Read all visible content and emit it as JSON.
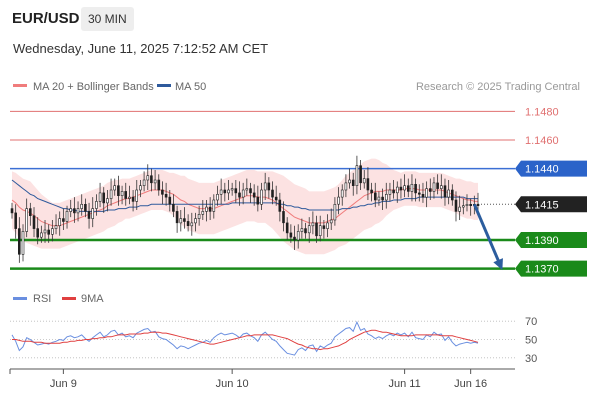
{
  "header": {
    "symbol": "EUR/USD",
    "timeframe": "30 MIN",
    "datetime": "Wednesday, June 11, 2025 7:12:52 AM CET"
  },
  "legend": {
    "bollinger_label": "MA 20 + Bollinger Bands",
    "ma50_label": "MA 50",
    "credit": "Research © 2025 Trading Central",
    "rsi_label": "RSI",
    "rsi_ma_label": "9MA"
  },
  "colors": {
    "bollinger": "#f07c7c",
    "ma50": "#2e5a9c",
    "bull_candle": "#1f1f1f",
    "bear_candle": "#1f1f1f",
    "resistance_line": "#e07070",
    "pivot_line": "#3b6fd4",
    "support_line": "#1a8a1a",
    "support_label_bg": "#1a8a1a",
    "pivot_label_bg": "#2b63c9",
    "last_price_bg": "#222222",
    "arrow": "#2c5d9e",
    "rsi": "#6a8fe0",
    "rsi_ma": "#e04040"
  },
  "chart_data": [
    {
      "type": "candlestick",
      "price_axis": {
        "min": 1.1362,
        "max": 1.1488
      },
      "levels": [
        {
          "price": 1.148,
          "label": "1.1480",
          "kind": "resistance"
        },
        {
          "price": 1.146,
          "label": "1.1460",
          "kind": "resistance"
        },
        {
          "price": 1.144,
          "label": "1.1440",
          "kind": "pivot"
        },
        {
          "price": 1.1415,
          "label": "1.1415",
          "kind": "last"
        },
        {
          "price": 1.139,
          "label": "1.1390",
          "kind": "support"
        },
        {
          "price": 1.137,
          "label": "1.1370",
          "kind": "support"
        }
      ],
      "x_ticks": [
        {
          "label": "Jun 9",
          "bar": 14
        },
        {
          "label": "Jun 10",
          "bar": 60
        },
        {
          "label": "Jun 11",
          "bar": 107
        },
        {
          "label": "Jun 16",
          "bar": 125
        }
      ],
      "x_range_bars": [
        0,
        132
      ],
      "close": [
        1.1409,
        1.1398,
        1.138,
        1.1396,
        1.1412,
        1.1407,
        1.1398,
        1.1392,
        1.1395,
        1.1397,
        1.1394,
        1.1398,
        1.14,
        1.1405,
        1.1403,
        1.141,
        1.1412,
        1.1409,
        1.1412,
        1.1415,
        1.141,
        1.1405,
        1.1412,
        1.1417,
        1.1423,
        1.1416,
        1.1419,
        1.1425,
        1.1428,
        1.1421,
        1.1424,
        1.1419,
        1.142,
        1.1417,
        1.1425,
        1.1428,
        1.1432,
        1.1435,
        1.143,
        1.1432,
        1.1425,
        1.1422,
        1.142,
        1.1415,
        1.141,
        1.1402,
        1.1405,
        1.1403,
        1.14,
        1.1402,
        1.1405,
        1.1408,
        1.141,
        1.1413,
        1.141,
        1.1418,
        1.1422,
        1.1425,
        1.1423,
        1.1425,
        1.1426,
        1.1423,
        1.142,
        1.1425,
        1.1426,
        1.1423,
        1.142,
        1.1415,
        1.1425,
        1.143,
        1.1425,
        1.142,
        1.1418,
        1.141,
        1.1402,
        1.1395,
        1.1392,
        1.139,
        1.1396,
        1.1398,
        1.1395,
        1.14,
        1.1402,
        1.1393,
        1.14,
        1.1398,
        1.1402,
        1.1404,
        1.1415,
        1.142,
        1.1425,
        1.143,
        1.1432,
        1.1428,
        1.1442,
        1.143,
        1.1433,
        1.1425,
        1.1423,
        1.1418,
        1.142,
        1.1418,
        1.1422,
        1.1425,
        1.1423,
        1.1427,
        1.1425,
        1.1428,
        1.1424,
        1.1429,
        1.1423,
        1.1422,
        1.142,
        1.1426,
        1.1424,
        1.143,
        1.1426,
        1.1428,
        1.142,
        1.1425,
        1.1418,
        1.141,
        1.1413,
        1.1414,
        1.1415,
        1.1414,
        1.1415,
        1.1414
      ],
      "ma20": [
        1.1418,
        1.1416,
        1.1413,
        1.1411,
        1.141,
        1.1409,
        1.1407,
        1.1405,
        1.1403,
        1.1402,
        1.1401,
        1.14,
        1.14,
        1.14,
        1.1401,
        1.1402,
        1.1403,
        1.1404,
        1.1405,
        1.1406,
        1.1407,
        1.1408,
        1.1409,
        1.141,
        1.1411,
        1.1412,
        1.1414,
        1.1415,
        1.1416,
        1.1417,
        1.1418,
        1.1419,
        1.1419,
        1.142,
        1.1421,
        1.1422,
        1.1423,
        1.1424,
        1.1425,
        1.1425,
        1.1425,
        1.1425,
        1.1424,
        1.1423,
        1.1422,
        1.142,
        1.1418,
        1.1417,
        1.1415,
        1.1414,
        1.1413,
        1.1412,
        1.1412,
        1.1412,
        1.1412,
        1.1412,
        1.1413,
        1.1414,
        1.1415,
        1.1416,
        1.1417,
        1.1418,
        1.1419,
        1.142,
        1.1421,
        1.1421,
        1.1421,
        1.142,
        1.142,
        1.142,
        1.1419,
        1.1418,
        1.1416,
        1.1414,
        1.1412,
        1.141,
        1.1408,
        1.1406,
        1.1405,
        1.1404,
        1.1403,
        1.1402,
        1.1402,
        1.1402,
        1.1402,
        1.1402,
        1.1403,
        1.1404,
        1.1405,
        1.1407,
        1.1409,
        1.1411,
        1.1413,
        1.1415,
        1.1417,
        1.1419,
        1.1421,
        1.1422,
        1.1423,
        1.1424,
        1.1424,
        1.1424,
        1.1425,
        1.1425,
        1.1425,
        1.1425,
        1.1425,
        1.1426,
        1.1426,
        1.1426,
        1.1426,
        1.1425,
        1.1425,
        1.1425,
        1.1425,
        1.1425,
        1.1425,
        1.1425,
        1.1424,
        1.1423,
        1.1422,
        1.1421,
        1.142,
        1.1419,
        1.1418,
        1.1418,
        1.1417,
        1.1417
      ],
      "ma50": [
        1.1432,
        1.143,
        1.1428,
        1.1426,
        1.1424,
        1.1422,
        1.1421,
        1.1419,
        1.1418,
        1.1417,
        1.1416,
        1.1415,
        1.1414,
        1.1413,
        1.1412,
        1.1412,
        1.1411,
        1.1411,
        1.141,
        1.141,
        1.141,
        1.141,
        1.141,
        1.141,
        1.141,
        1.141,
        1.1411,
        1.1411,
        1.1411,
        1.1412,
        1.1412,
        1.1412,
        1.1413,
        1.1413,
        1.1413,
        1.1414,
        1.1414,
        1.1414,
        1.1415,
        1.1415,
        1.1415,
        1.1415,
        1.1415,
        1.1415,
        1.1415,
        1.1415,
        1.1415,
        1.1415,
        1.1415,
        1.1415,
        1.1415,
        1.1415,
        1.1415,
        1.1415,
        1.1415,
        1.1415,
        1.1415,
        1.1415,
        1.1415,
        1.1415,
        1.1416,
        1.1416,
        1.1416,
        1.1416,
        1.1416,
        1.1416,
        1.1416,
        1.1416,
        1.1416,
        1.1416,
        1.1416,
        1.1416,
        1.1416,
        1.1415,
        1.1415,
        1.1414,
        1.1414,
        1.1413,
        1.1413,
        1.1412,
        1.1412,
        1.1411,
        1.1411,
        1.1411,
        1.1411,
        1.1411,
        1.1411,
        1.1411,
        1.1411,
        1.1411,
        1.1412,
        1.1412,
        1.1412,
        1.1413,
        1.1413,
        1.1414,
        1.1414,
        1.1415,
        1.1415,
        1.1416,
        1.1416,
        1.1417,
        1.1417,
        1.1417,
        1.1418,
        1.1418,
        1.1418,
        1.1419,
        1.1419,
        1.1419,
        1.1419,
        1.142,
        1.142,
        1.142,
        1.142,
        1.142,
        1.142,
        1.142,
        1.142,
        1.142,
        1.142,
        1.142,
        1.142,
        1.142,
        1.1419,
        1.1419,
        1.1419,
        1.1419
      ],
      "bb_width": [
        0.002,
        0.0021,
        0.0022,
        0.0022,
        0.0022,
        0.0022,
        0.0021,
        0.002,
        0.0019,
        0.0018,
        0.0017,
        0.0016,
        0.0016,
        0.0016,
        0.0016,
        0.0016,
        0.0016,
        0.0016,
        0.0016,
        0.0016,
        0.0016,
        0.0016,
        0.0016,
        0.0016,
        0.0016,
        0.0016,
        0.0016,
        0.0016,
        0.0016,
        0.0015,
        0.0015,
        0.0014,
        0.0014,
        0.0014,
        0.0014,
        0.0014,
        0.0014,
        0.0014,
        0.0014,
        0.0014,
        0.0014,
        0.0014,
        0.0014,
        0.0014,
        0.0015,
        0.0016,
        0.0017,
        0.0018,
        0.0018,
        0.0018,
        0.0018,
        0.0018,
        0.0018,
        0.0018,
        0.0018,
        0.0018,
        0.0018,
        0.0018,
        0.0018,
        0.0018,
        0.0018,
        0.0018,
        0.0018,
        0.0018,
        0.0018,
        0.0018,
        0.0018,
        0.0018,
        0.0018,
        0.0018,
        0.0019,
        0.002,
        0.0021,
        0.0022,
        0.0023,
        0.0023,
        0.0023,
        0.0023,
        0.0023,
        0.0023,
        0.0023,
        0.0022,
        0.0022,
        0.0022,
        0.0022,
        0.0022,
        0.0022,
        0.0022,
        0.0022,
        0.0022,
        0.0023,
        0.0024,
        0.0024,
        0.0024,
        0.0024,
        0.0024,
        0.0024,
        0.0024,
        0.0024,
        0.0023,
        0.0022,
        0.002,
        0.0018,
        0.0016,
        0.0014,
        0.0013,
        0.0012,
        0.0012,
        0.0012,
        0.0012,
        0.0012,
        0.0012,
        0.0012,
        0.0012,
        0.0012,
        0.0012,
        0.0012,
        0.0012,
        0.0012,
        0.0012,
        0.0012,
        0.0012,
        0.0013,
        0.0013,
        0.0013,
        0.0013,
        0.0013,
        0.0013
      ],
      "projection": {
        "from_bar": 126,
        "from_price": 1.1415,
        "to_bar": 133,
        "to_price": 1.137
      }
    },
    {
      "type": "line",
      "name": "RSI",
      "y_axis": {
        "min": 20,
        "max": 80,
        "ticks": [
          70,
          50,
          30
        ]
      },
      "series": [
        {
          "name": "RSI",
          "values": [
            55,
            48,
            38,
            42,
            52,
            50,
            47,
            44,
            45,
            46,
            45,
            47,
            48,
            50,
            49,
            53,
            54,
            52,
            53,
            55,
            51,
            48,
            52,
            55,
            58,
            53,
            55,
            59,
            60,
            55,
            57,
            53,
            54,
            52,
            57,
            59,
            61,
            62,
            58,
            59,
            53,
            51,
            50,
            47,
            44,
            40,
            43,
            42,
            40,
            42,
            44,
            46,
            47,
            49,
            47,
            52,
            55,
            57,
            55,
            56,
            57,
            55,
            52,
            56,
            57,
            54,
            52,
            48,
            55,
            58,
            54,
            50,
            48,
            43,
            39,
            35,
            34,
            33,
            39,
            41,
            38,
            43,
            44,
            37,
            43,
            41,
            44,
            46,
            53,
            56,
            59,
            62,
            63,
            59,
            69,
            60,
            62,
            56,
            54,
            51,
            53,
            51,
            54,
            56,
            54,
            57,
            55,
            57,
            53,
            58,
            52,
            51,
            50,
            55,
            53,
            58,
            55,
            56,
            49,
            53,
            47,
            43,
            45,
            46,
            47,
            46,
            47,
            46
          ]
        },
        {
          "name": "9MA",
          "values": [
            50,
            50,
            49,
            48,
            48,
            48,
            47,
            47,
            47,
            46,
            46,
            46,
            46,
            46,
            47,
            47,
            48,
            48,
            49,
            49,
            50,
            50,
            51,
            51,
            52,
            52,
            53,
            53,
            54,
            55,
            55,
            55,
            56,
            56,
            56,
            56,
            57,
            57,
            58,
            58,
            58,
            57,
            57,
            56,
            55,
            54,
            53,
            52,
            51,
            50,
            49,
            48,
            47,
            46,
            45,
            45,
            46,
            47,
            48,
            49,
            50,
            51,
            52,
            53,
            54,
            54,
            55,
            55,
            55,
            55,
            55,
            55,
            54,
            53,
            52,
            51,
            49,
            47,
            45,
            44,
            42,
            41,
            40,
            40,
            39,
            40,
            40,
            41,
            42,
            43,
            45,
            47,
            50,
            52,
            54,
            56,
            58,
            59,
            60,
            60,
            59,
            58,
            58,
            57,
            56,
            55,
            54,
            54,
            54,
            54,
            55,
            55,
            55,
            55,
            55,
            55,
            55,
            54,
            54,
            54,
            54,
            53,
            52,
            51,
            50,
            49,
            48,
            47
          ]
        }
      ]
    }
  ]
}
